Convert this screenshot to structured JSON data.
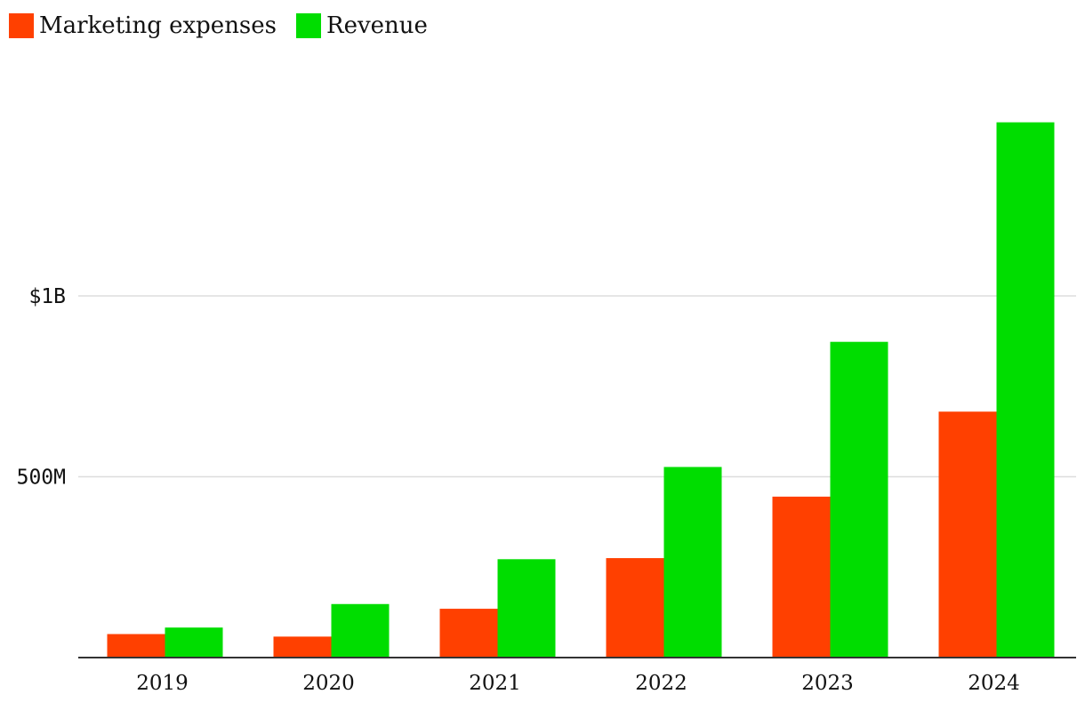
{
  "chart_data": {
    "type": "bar",
    "categories": [
      "2019",
      "2020",
      "2021",
      "2022",
      "2023",
      "2024"
    ],
    "series": [
      {
        "name": "Marketing expenses",
        "color": "#ff4000",
        "values": [
          65,
          58,
          135,
          275,
          445,
          680
        ]
      },
      {
        "name": "Revenue",
        "color": "#00dd00",
        "values": [
          83,
          148,
          272,
          527,
          873,
          1480
        ]
      }
    ],
    "ytick_values": [
      500,
      1000
    ],
    "ytick_labels": [
      "500M",
      "$1B"
    ],
    "ylim": [
      0,
      1500
    ],
    "grid": true,
    "legend_position": "top-left",
    "units": "millions of dollars"
  }
}
